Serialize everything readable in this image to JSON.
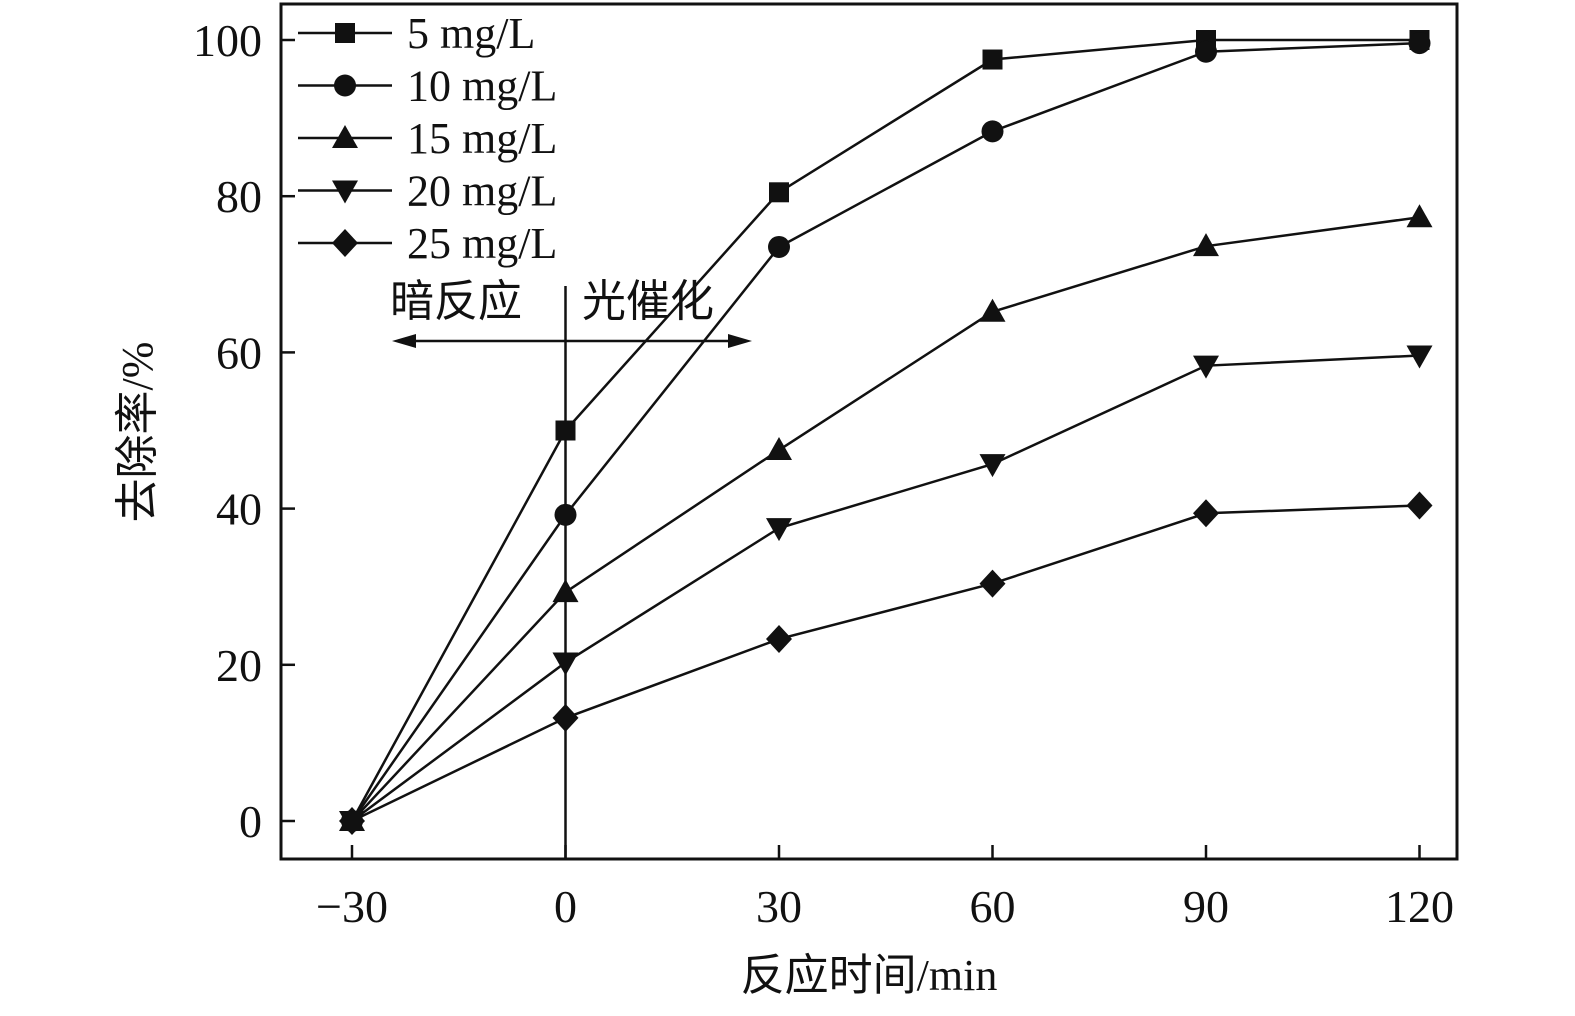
{
  "chart_data": {
    "type": "line",
    "xlabel": "反应时间/min",
    "ylabel": "去除率/%",
    "x": [
      -30,
      0,
      30,
      60,
      90,
      120
    ],
    "xticks": [
      "−30",
      "0",
      "30",
      "60",
      "90",
      "120"
    ],
    "yticks": [
      "0",
      "20",
      "40",
      "60",
      "80",
      "100"
    ],
    "xlim": [
      -40,
      125
    ],
    "ylim": [
      -5,
      105
    ],
    "grid": false,
    "legend_position": "top-left",
    "series": [
      {
        "name": "5 mg/L",
        "marker": "square",
        "values": [
          0,
          50,
          80.5,
          97.5,
          100,
          100
        ]
      },
      {
        "name": "10 mg/L",
        "marker": "circle",
        "values": [
          0,
          39.2,
          73.5,
          88.3,
          98.5,
          99.6
        ]
      },
      {
        "name": "15 mg/L",
        "marker": "triangle-up",
        "values": [
          0,
          29.3,
          47.5,
          65.2,
          73.6,
          77.3
        ]
      },
      {
        "name": "20 mg/L",
        "marker": "triangle-down",
        "values": [
          0,
          20.3,
          37.5,
          45.7,
          58.3,
          59.6
        ]
      },
      {
        "name": "25 mg/L",
        "marker": "diamond",
        "values": [
          0,
          13.2,
          23.3,
          30.4,
          39.4,
          40.4
        ]
      }
    ],
    "annotations": {
      "left_label": "暗反应",
      "right_label": "光催化",
      "divider_x": 0
    },
    "color": "#111111"
  }
}
